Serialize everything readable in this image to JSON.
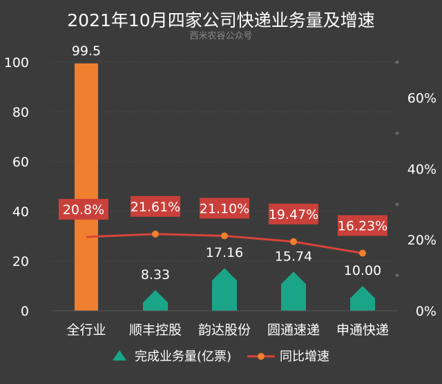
{
  "chart_data": {
    "type": "bar",
    "title": "2021年10月四家公司快递业务量及增速",
    "subtitle": "西米农谷公众号",
    "categories": [
      "全行业",
      "顺丰控股",
      "韵达股份",
      "圆通速递",
      "申通快递"
    ],
    "left_axis": {
      "min": 0,
      "max": 100,
      "ticks": [
        "0",
        "20",
        "40",
        "60",
        "80",
        "100"
      ]
    },
    "right_axis": {
      "min": 0,
      "max": 0.7,
      "ticks": [
        "0%",
        "20%",
        "40%",
        "60%"
      ]
    },
    "series": [
      {
        "name": "完成业务量(亿票)",
        "axis": "left",
        "values": [
          99.5,
          8.33,
          17.16,
          15.74,
          10.0
        ],
        "labels": [
          "99.5",
          "8.33",
          "17.16",
          "15.74",
          "10.00"
        ],
        "colors": [
          "#f07f2f",
          "#1aa588",
          "#1aa588",
          "#1aa588",
          "#1aa588"
        ]
      },
      {
        "name": "同比增速",
        "axis": "right",
        "type": "line",
        "values": [
          0.208,
          0.2161,
          0.211,
          0.1947,
          0.1623
        ],
        "labels": [
          "20.8%",
          "21.61%",
          "21.10%",
          "19.47%",
          "16.23%"
        ],
        "color": "#d9443a"
      }
    ],
    "legend_position": "bottom",
    "grid": true
  }
}
